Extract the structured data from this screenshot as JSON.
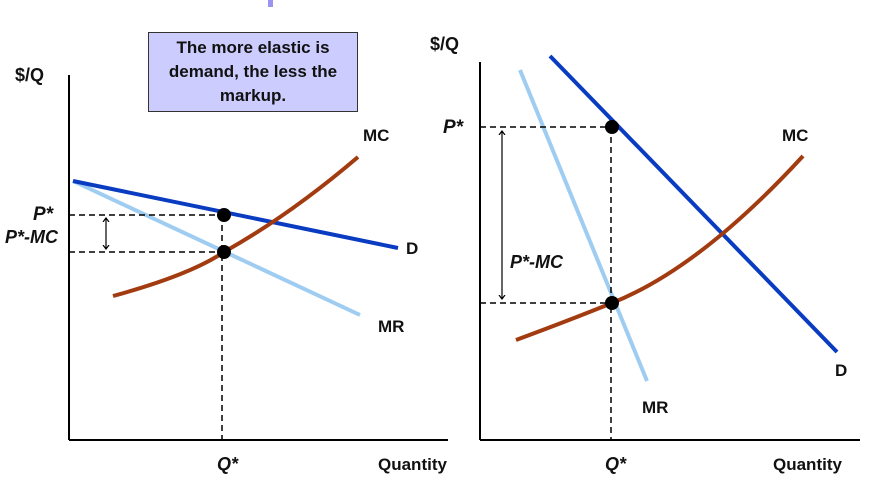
{
  "callout": {
    "text": "The more elastic is demand, the less the markup."
  },
  "colors": {
    "demand": "#0a3cc2",
    "marginal_revenue": "#9fcdf2",
    "marginal_cost": "#a33b10",
    "callout_bg": "#ccccff",
    "accent": "#9a94f0"
  },
  "left_panel": {
    "y_axis_label": "$/Q",
    "x_axis_label": "Quantity",
    "price_label": "P*",
    "markup_label": "P*-MC",
    "quantity_label": "Q*",
    "mc_label": "MC",
    "d_label": "D",
    "mr_label": "MR"
  },
  "right_panel": {
    "y_axis_label": "$/Q",
    "x_axis_label": "Quantity",
    "price_label": "P*",
    "markup_label": "P*-MC",
    "quantity_label": "Q*",
    "mc_label": "MC",
    "d_label": "D",
    "mr_label": "MR"
  }
}
